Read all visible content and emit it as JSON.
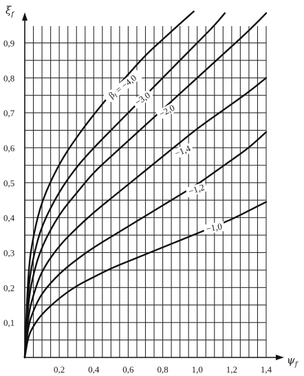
{
  "chart_data": {
    "type": "line",
    "title": "",
    "xlabel": "ψf",
    "ylabel": "ξf",
    "xlim": [
      0,
      1.4
    ],
    "ylim": [
      0,
      1.0
    ],
    "x_ticks": [
      "0,2",
      "0,4",
      "0,6",
      "0,8",
      "1,0",
      "1,2",
      "1,4"
    ],
    "y_ticks": [
      "0,1",
      "0,2",
      "0,3",
      "0,4",
      "0,5",
      "0,6",
      "0,7",
      "0,8",
      "0,9"
    ],
    "grid": true,
    "series": [
      {
        "name": "βf = −4,0",
        "label": "βf = −4,0",
        "x": [
          0,
          0.02,
          0.05,
          0.1,
          0.2,
          0.3,
          0.4,
          0.5,
          0.6,
          0.7,
          0.8,
          0.9,
          0.98
        ],
        "y": [
          0,
          0.25,
          0.35,
          0.45,
          0.555,
          0.63,
          0.695,
          0.755,
          0.81,
          0.865,
          0.91,
          0.955,
          0.99
        ]
      },
      {
        "name": "−3,0",
        "label": "−3,0",
        "x": [
          0,
          0.02,
          0.05,
          0.1,
          0.2,
          0.3,
          0.4,
          0.5,
          0.6,
          0.7,
          0.8,
          0.9,
          1.0,
          1.1,
          1.16
        ],
        "y": [
          0,
          0.2,
          0.29,
          0.38,
          0.475,
          0.545,
          0.6,
          0.65,
          0.7,
          0.75,
          0.8,
          0.85,
          0.9,
          0.95,
          0.985
        ]
      },
      {
        "name": "−2,0",
        "label": "−2,0",
        "x": [
          0,
          0.02,
          0.05,
          0.1,
          0.2,
          0.3,
          0.4,
          0.5,
          0.6,
          0.7,
          0.8,
          0.9,
          1.0,
          1.1,
          1.2,
          1.3,
          1.4
        ],
        "y": [
          0,
          0.16,
          0.24,
          0.32,
          0.41,
          0.47,
          0.53,
          0.575,
          0.62,
          0.665,
          0.71,
          0.755,
          0.8,
          0.845,
          0.89,
          0.935,
          0.985
        ]
      },
      {
        "name": "−1,4",
        "label": "−1,4",
        "x": [
          0,
          0.02,
          0.05,
          0.1,
          0.2,
          0.3,
          0.4,
          0.5,
          0.6,
          0.7,
          0.8,
          0.9,
          1.0,
          1.1,
          1.2,
          1.3,
          1.4
        ],
        "y": [
          0,
          0.12,
          0.18,
          0.25,
          0.32,
          0.37,
          0.415,
          0.455,
          0.495,
          0.535,
          0.575,
          0.615,
          0.655,
          0.69,
          0.725,
          0.76,
          0.8
        ]
      },
      {
        "name": "−1,2",
        "label": "−1,2",
        "x": [
          0,
          0.02,
          0.05,
          0.1,
          0.2,
          0.3,
          0.4,
          0.5,
          0.6,
          0.7,
          0.8,
          0.9,
          1.0,
          1.1,
          1.2,
          1.3,
          1.4
        ],
        "y": [
          0,
          0.09,
          0.135,
          0.185,
          0.24,
          0.28,
          0.315,
          0.345,
          0.375,
          0.405,
          0.435,
          0.465,
          0.495,
          0.53,
          0.565,
          0.6,
          0.645
        ]
      },
      {
        "name": "−1,0",
        "label": "−1,0",
        "x": [
          0,
          0.02,
          0.05,
          0.1,
          0.2,
          0.3,
          0.4,
          0.5,
          0.6,
          0.7,
          0.8,
          0.9,
          1.0,
          1.1,
          1.2,
          1.3,
          1.4
        ],
        "y": [
          0,
          0.06,
          0.09,
          0.125,
          0.17,
          0.205,
          0.23,
          0.255,
          0.275,
          0.295,
          0.315,
          0.335,
          0.355,
          0.375,
          0.395,
          0.42,
          0.445
        ]
      }
    ]
  }
}
